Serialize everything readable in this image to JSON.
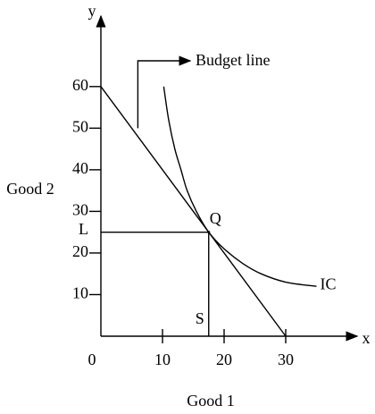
{
  "chart_data": {
    "type": "line",
    "x_label": "Good 1",
    "y_label": "Good 2",
    "x_axis_name": "x",
    "y_axis_name": "y",
    "xlim": [
      0,
      40
    ],
    "ylim": [
      0,
      75
    ],
    "xticks": [
      0,
      10,
      20,
      30
    ],
    "yticks": [
      10,
      20,
      30,
      40,
      50,
      60
    ],
    "series": [
      {
        "name": "Budget line",
        "color": "#000000",
        "x": [
          0,
          30
        ],
        "values": [
          60,
          0
        ]
      },
      {
        "name": "IC",
        "color": "#000000",
        "x": [
          10.2,
          11,
          12,
          13,
          14,
          15.5,
          17.5,
          20,
          23,
          26,
          30,
          35
        ],
        "values": [
          60,
          52,
          45,
          40,
          35,
          30,
          25,
          21,
          17.5,
          15,
          13,
          12
        ]
      }
    ],
    "point": {
      "label": "Q",
      "x": 17.5,
      "y": 25,
      "x_guide_label": "S",
      "y_guide_label": "L"
    },
    "annotation": {
      "x": 6,
      "y": 50
    }
  }
}
